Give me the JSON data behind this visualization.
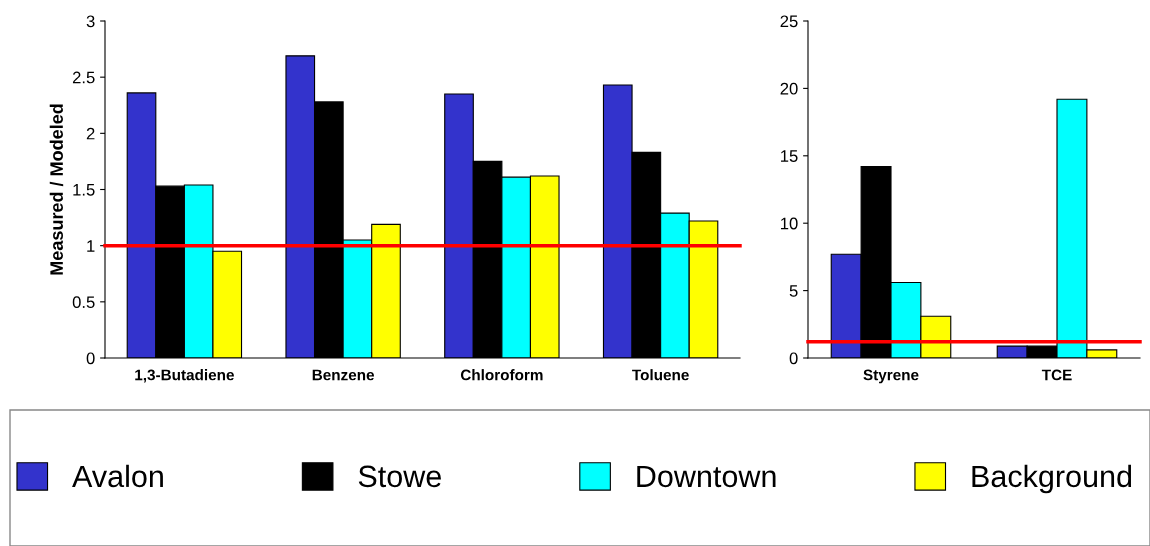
{
  "chart_data": [
    {
      "type": "bar",
      "ylabel": "Measured / Modeled",
      "categories": [
        "1,3-Butadiene",
        "Benzene",
        "Chloroform",
        "Toluene"
      ],
      "series": [
        {
          "name": "Avalon",
          "color": "#3333cc",
          "values": [
            2.36,
            2.69,
            2.35,
            2.43
          ]
        },
        {
          "name": "Stowe",
          "color": "#000000",
          "values": [
            1.53,
            2.28,
            1.75,
            1.83
          ]
        },
        {
          "name": "Downtown",
          "color": "#00ffff",
          "values": [
            1.54,
            1.05,
            1.61,
            1.29
          ]
        },
        {
          "name": "Background",
          "color": "#ffff00",
          "values": [
            0.95,
            1.19,
            1.62,
            1.22
          ]
        }
      ],
      "ylim": [
        0,
        3
      ],
      "yticks": [
        0,
        0.5,
        1,
        1.5,
        2,
        2.5,
        3
      ],
      "ref_lines": [
        {
          "axis": "y",
          "value": 1,
          "color": "#ff0000"
        }
      ],
      "grid": false,
      "legend": "bottom"
    },
    {
      "type": "bar",
      "categories": [
        "Styrene",
        "TCE"
      ],
      "series": [
        {
          "color": "#3333cc",
          "values": [
            7.7,
            0.88
          ]
        },
        {
          "color": "#000000",
          "values": [
            14.2,
            0.88
          ]
        },
        {
          "color": "#00ffff",
          "values": [
            5.6,
            19.2
          ]
        },
        {
          "color": "#ffff00",
          "values": [
            3.1,
            0.6
          ]
        }
      ],
      "ylim": [
        0,
        25
      ],
      "yticks": [
        0,
        5,
        10,
        15,
        20,
        25
      ],
      "ref_lines": [
        {
          "axis": "y",
          "value": 1.2,
          "color": "#ff0000"
        }
      ],
      "grid": false
    }
  ]
}
